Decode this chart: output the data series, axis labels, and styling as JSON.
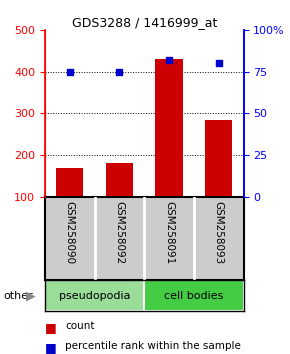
{
  "title": "GDS3288 / 1416999_at",
  "samples": [
    "GSM258090",
    "GSM258092",
    "GSM258091",
    "GSM258093"
  ],
  "counts": [
    170,
    182,
    430,
    285
  ],
  "percentiles": [
    75,
    75,
    82,
    80
  ],
  "bar_color": "#cc0000",
  "dot_color": "#0000cc",
  "ylim_left": [
    100,
    500
  ],
  "ylim_right": [
    0,
    100
  ],
  "yticks_left": [
    100,
    200,
    300,
    400,
    500
  ],
  "yticks_right": [
    0,
    25,
    50,
    75,
    100
  ],
  "ytick_labels_right": [
    "0",
    "25",
    "50",
    "75",
    "100%"
  ],
  "groups": [
    {
      "label": "pseudopodia",
      "color": "#99dd99",
      "indices": [
        0,
        1
      ]
    },
    {
      "label": "cell bodies",
      "color": "#44cc44",
      "indices": [
        2,
        3
      ]
    }
  ],
  "other_label": "other",
  "legend_count_label": "count",
  "legend_pct_label": "percentile rank within the sample",
  "background_color": "#ffffff"
}
